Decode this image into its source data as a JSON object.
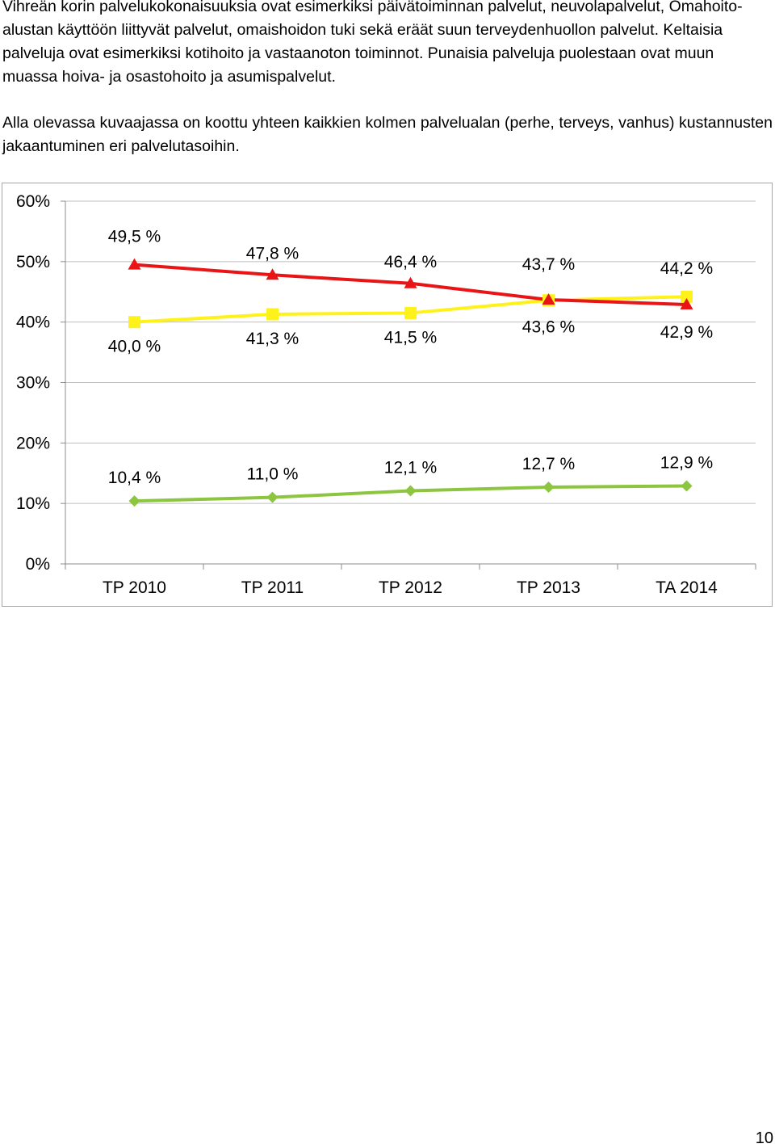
{
  "paragraphs": {
    "p1": "Vihreän korin palvelukokonaisuuksia ovat esimerkiksi päivätoiminnan palvelut, neuvolapalvelut, Omahoito-alustan käyttöön liittyvät palvelut, omaishoidon tuki sekä eräät suun terveydenhuollon palvelut. Keltaisia palveluja ovat esimerkiksi kotihoito ja vastaanoton toiminnot. Punaisia palveluja puolestaan ovat muun muassa hoiva- ja osastohoito ja asumispalvelut.",
    "p2": "Alla olevassa kuvaajassa on koottu yhteen kaikkien kolmen palvelualan (perhe, terveys, vanhus) kustannusten jakaantuminen eri palvelutasoihin."
  },
  "chart_data": {
    "type": "line",
    "categories": [
      "TP  2010",
      "TP  2011",
      "TP  2012",
      "TP 2013",
      "TA 2014"
    ],
    "ylim": [
      0,
      60
    ],
    "yticks": [
      "0%",
      "10%",
      "20%",
      "30%",
      "40%",
      "50%",
      "60%"
    ],
    "grid": "horizontal",
    "series": [
      {
        "key": "red",
        "color": "#e81416",
        "marker": "triangle",
        "values": [
          49.5,
          47.8,
          46.4,
          43.7,
          42.9
        ],
        "labels": [
          "49,5 %",
          "47,8 %",
          "46,4 %",
          "43,7 %",
          "42,9 %"
        ]
      },
      {
        "key": "yellow",
        "color": "#fff21a",
        "marker": "square",
        "values": [
          40.0,
          41.3,
          41.5,
          43.6,
          44.2
        ],
        "labels": [
          "40,0 %",
          "41,3 %",
          "41,5 %",
          "43,6 %",
          "44,2 %"
        ]
      },
      {
        "key": "green",
        "color": "#8cc63f",
        "marker": "diamond",
        "values": [
          10.4,
          11.0,
          12.1,
          12.7,
          12.9
        ],
        "labels": [
          "10,4 %",
          "11,0 %",
          "12,1 %",
          "12,7 %",
          "12,9 %"
        ]
      }
    ]
  },
  "page_number": "10"
}
